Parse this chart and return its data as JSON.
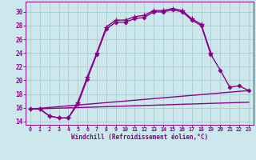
{
  "xlabel": "Windchill (Refroidissement éolien,°C)",
  "background_color": "#cce8ec",
  "grid_color": "#aacccc",
  "line_color": "#880088",
  "xlim": [
    -0.5,
    23.5
  ],
  "ylim": [
    13.5,
    31.5
  ],
  "yticks": [
    14,
    16,
    18,
    20,
    22,
    24,
    26,
    28,
    30
  ],
  "xticks": [
    0,
    1,
    2,
    3,
    4,
    5,
    6,
    7,
    8,
    9,
    10,
    11,
    12,
    13,
    14,
    15,
    16,
    17,
    18,
    19,
    20,
    21,
    22,
    23
  ],
  "series": [
    {
      "x": [
        0,
        1,
        2,
        3,
        4,
        5,
        6,
        7,
        8,
        9,
        10,
        11,
        12,
        13,
        14,
        15,
        16,
        17,
        18,
        19
      ],
      "y": [
        15.8,
        15.8,
        14.8,
        14.5,
        14.5,
        16.8,
        20.5,
        24.0,
        27.8,
        28.8,
        28.8,
        29.3,
        29.5,
        30.2,
        30.2,
        30.5,
        30.2,
        29.0,
        28.2,
        24.0
      ],
      "marker": "+",
      "markersize": 4,
      "lw": 1.0
    },
    {
      "x": [
        0,
        1,
        2,
        3,
        4,
        5,
        6,
        7,
        8,
        9,
        10,
        11,
        12,
        13,
        14,
        15,
        16,
        17,
        18,
        19,
        20,
        21,
        22,
        23
      ],
      "y": [
        15.8,
        15.8,
        14.8,
        14.5,
        14.5,
        16.5,
        20.2,
        23.8,
        27.5,
        28.5,
        28.5,
        29.0,
        29.2,
        30.0,
        30.0,
        30.3,
        30.0,
        28.8,
        28.0,
        23.8,
        21.5,
        19.0,
        19.2,
        18.5
      ],
      "marker": "D",
      "markersize": 2.5,
      "lw": 1.0
    },
    {
      "x": [
        0,
        23
      ],
      "y": [
        15.8,
        18.5
      ],
      "lw": 1.0
    },
    {
      "x": [
        0,
        23
      ],
      "y": [
        15.8,
        16.8
      ],
      "lw": 1.0
    }
  ]
}
